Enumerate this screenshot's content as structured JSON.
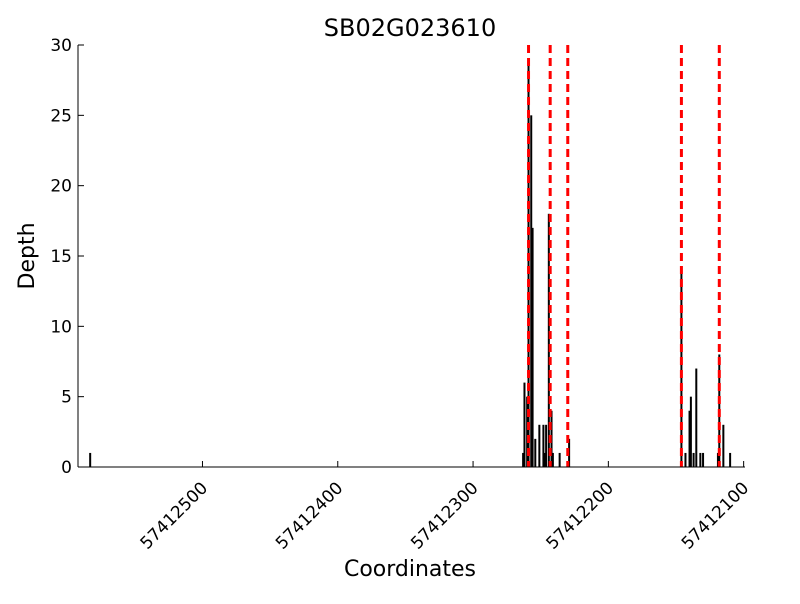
{
  "chart_data": {
    "type": "bar",
    "title": "SB02G023610",
    "x_label": "Coordinates",
    "y_label": "Depth",
    "x": [
      57412583,
      57412263,
      57412262,
      57412260,
      57412259,
      57412257,
      57412256,
      57412254,
      57412251,
      57412248,
      57412247,
      57412246,
      57412244,
      57412242,
      57412241,
      57412236,
      57412229,
      57412146,
      57412143,
      57412140,
      57412139,
      57412137,
      57412135,
      57412132,
      57412130,
      57412119,
      57412118,
      57412115,
      57412110
    ],
    "values": [
      1,
      1,
      6,
      5,
      29,
      25,
      17,
      2,
      3,
      3,
      1,
      3,
      18,
      4,
      1,
      1,
      2,
      14,
      1,
      4,
      5,
      1,
      7,
      1,
      1,
      1,
      8,
      3,
      1
    ],
    "color": "#000000",
    "vlines": [
      57412259,
      57412243,
      57412230,
      57412146,
      57412118
    ],
    "vline_color": "#ff0000",
    "xlim": [
      57412592,
      57412099
    ],
    "xticks": [
      57412500,
      57412400,
      57412300,
      57412200,
      57412100
    ],
    "ylim": [
      0,
      30
    ],
    "yticks": [
      0,
      5,
      10,
      15,
      20,
      25,
      30
    ]
  }
}
